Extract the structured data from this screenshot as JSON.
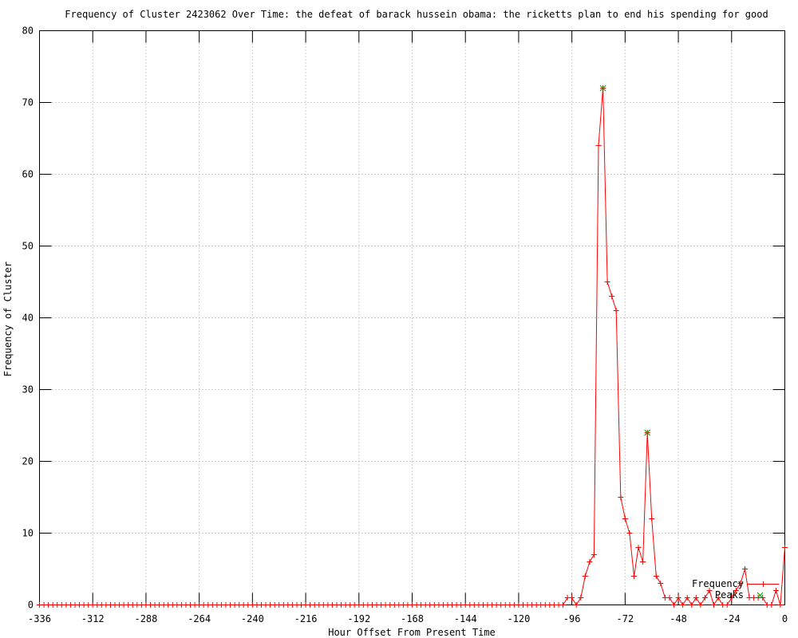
{
  "window": {
    "background": "#ffffff"
  },
  "chart_data": {
    "type": "line",
    "title": "Frequency of Cluster 2423062 Over Time: the defeat of barack hussein obama: the ricketts plan to end his spending for good",
    "xlabel": "Hour Offset From Present Time",
    "ylabel": "Frequency of Cluster",
    "xlim": [
      -336,
      0
    ],
    "ylim": [
      0,
      80
    ],
    "x_ticks": [
      -336,
      -312,
      -288,
      -264,
      -240,
      -216,
      -192,
      -168,
      -144,
      -120,
      -96,
      -72,
      -48,
      -24,
      0
    ],
    "y_ticks": [
      0,
      10,
      20,
      30,
      40,
      50,
      60,
      70,
      80
    ],
    "grid": true,
    "grid_color": "#a0a0a0",
    "legend_position": "bottom-right-inside",
    "series": [
      {
        "name": "Frequency",
        "style": "lines+points",
        "marker": "plus",
        "color": "#ff0000",
        "x_start": -336,
        "x_step": 2,
        "values": [
          0,
          0,
          0,
          0,
          0,
          0,
          0,
          0,
          0,
          0,
          0,
          0,
          0,
          0,
          0,
          0,
          0,
          0,
          0,
          0,
          0,
          0,
          0,
          0,
          0,
          0,
          0,
          0,
          0,
          0,
          0,
          0,
          0,
          0,
          0,
          0,
          0,
          0,
          0,
          0,
          0,
          0,
          0,
          0,
          0,
          0,
          0,
          0,
          0,
          0,
          0,
          0,
          0,
          0,
          0,
          0,
          0,
          0,
          0,
          0,
          0,
          0,
          0,
          0,
          0,
          0,
          0,
          0,
          0,
          0,
          0,
          0,
          0,
          0,
          0,
          0,
          0,
          0,
          0,
          0,
          0,
          0,
          0,
          0,
          0,
          0,
          0,
          0,
          0,
          0,
          0,
          0,
          0,
          0,
          0,
          0,
          0,
          0,
          0,
          0,
          0,
          0,
          0,
          0,
          0,
          0,
          0,
          0,
          0,
          0,
          0,
          0,
          0,
          0,
          0,
          0,
          0,
          0,
          0,
          1,
          1,
          0,
          1,
          4,
          6,
          7,
          64,
          72,
          45,
          43,
          41,
          15,
          12,
          10,
          4,
          8,
          6,
          24,
          12,
          4,
          3,
          1,
          1,
          0,
          1,
          0,
          1,
          0,
          1,
          0,
          1,
          2,
          0,
          1,
          0,
          0,
          1,
          2,
          3,
          5,
          1,
          1,
          1,
          1,
          0,
          0,
          2,
          0,
          8
        ]
      },
      {
        "name": "Peaks",
        "style": "points",
        "marker": "cross",
        "color": "#00aa00",
        "points": [
          [
            -82,
            72
          ],
          [
            -62,
            24
          ]
        ]
      }
    ]
  }
}
